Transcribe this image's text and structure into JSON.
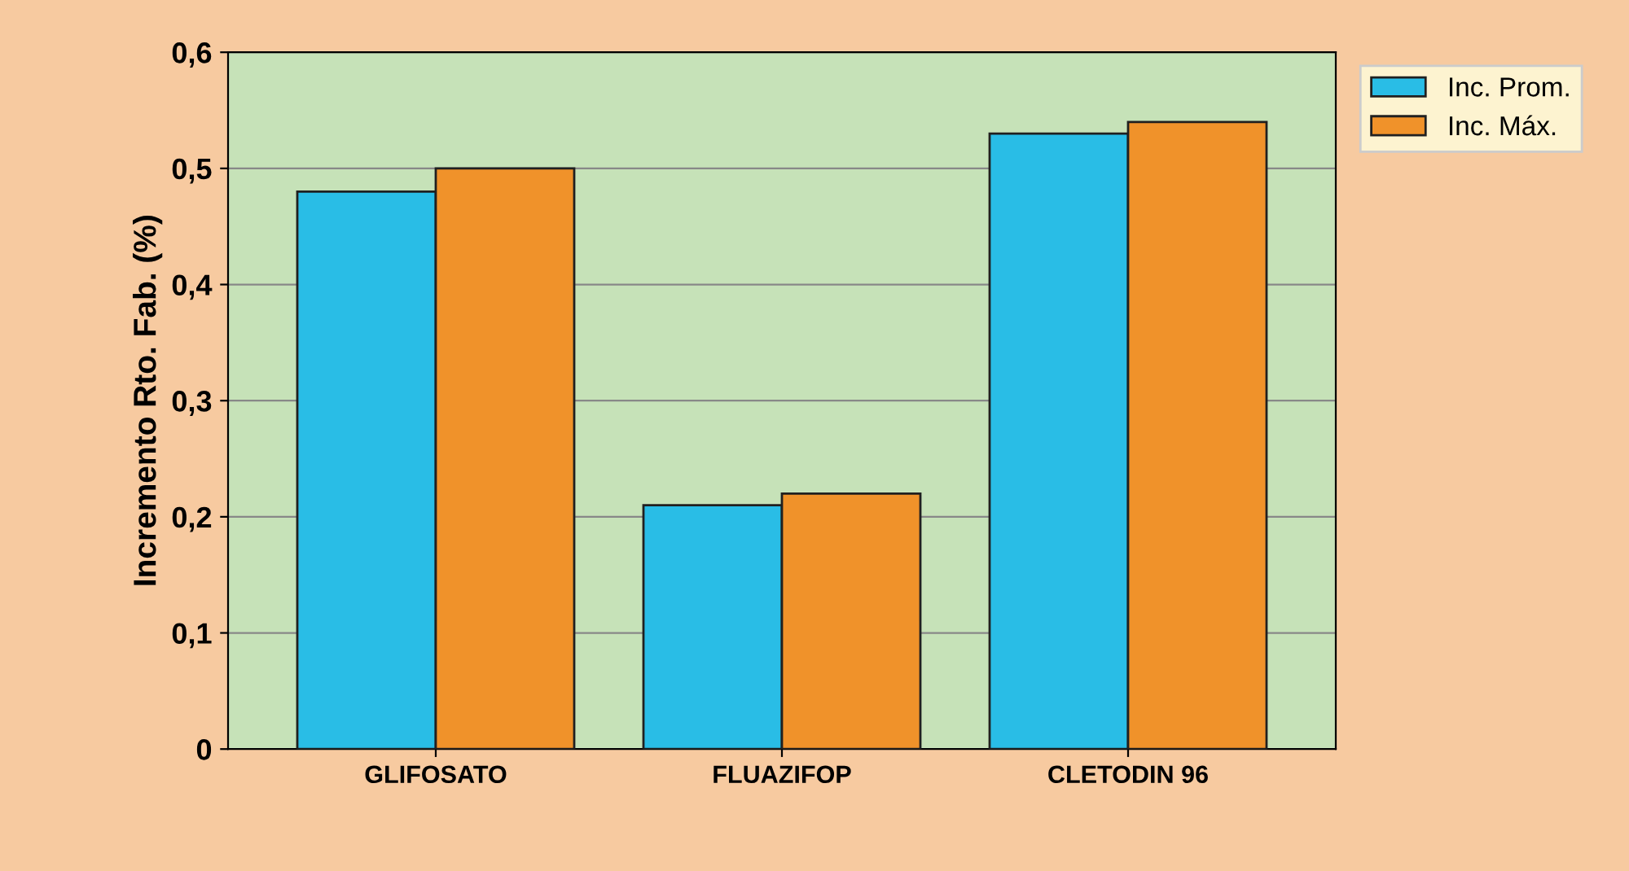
{
  "chart_data": {
    "type": "bar",
    "ylabel": "Incremento Rto. Fab. (%)",
    "categories": [
      "GLIFOSATO",
      "FLUAZIFOP",
      "CLETODIN 96"
    ],
    "series": [
      {
        "name": "Inc. Prom.",
        "color": "#29bde6",
        "values": [
          0.48,
          0.21,
          0.53
        ]
      },
      {
        "name": "Inc. Máx.",
        "color": "#f0922a",
        "values": [
          0.5,
          0.22,
          0.54
        ]
      }
    ],
    "ylim": [
      0,
      0.6
    ],
    "yticks": [
      {
        "value": 0,
        "label": "0"
      },
      {
        "value": 0.1,
        "label": "0,1"
      },
      {
        "value": 0.2,
        "label": "0,2"
      },
      {
        "value": 0.3,
        "label": "0,3"
      },
      {
        "value": 0.4,
        "label": "0,4"
      },
      {
        "value": 0.5,
        "label": "0,5"
      },
      {
        "value": 0.6,
        "label": "0,6"
      }
    ],
    "grid": "y",
    "legend": "top right"
  }
}
